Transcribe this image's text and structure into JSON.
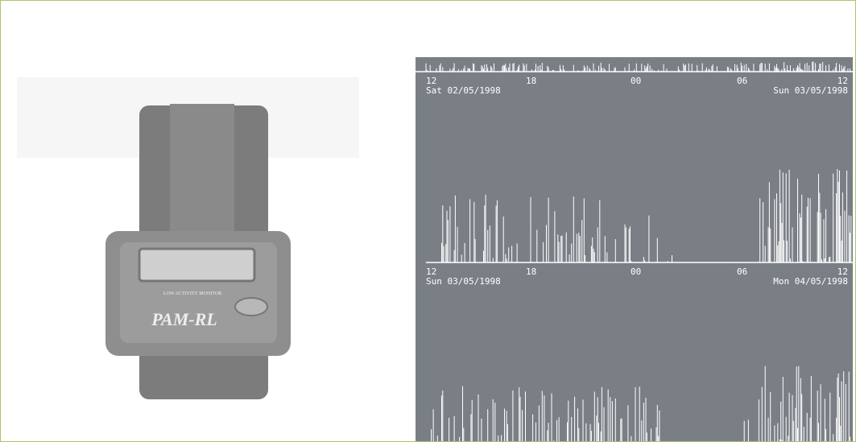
{
  "device": {
    "caption": "LOW ACTIVITY MONITOR",
    "brand": "PAM-RL"
  },
  "panels": [
    {
      "hour_labels": [
        "12",
        "18",
        "00",
        "06",
        "12"
      ],
      "start_date": "Sat 02/05/1998",
      "end_date": "Sun 03/05/1998"
    },
    {
      "hour_labels": [
        "12",
        "18",
        "00",
        "06",
        "12"
      ],
      "start_date": "Sun 03/05/1998",
      "end_date": "Mon 04/05/1998"
    }
  ]
}
